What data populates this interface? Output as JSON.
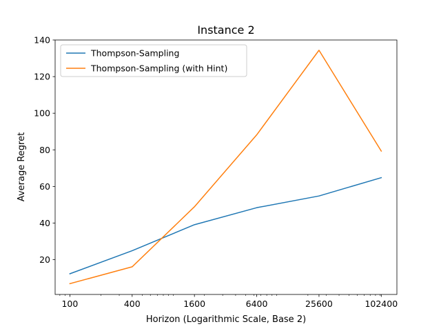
{
  "chart_data": {
    "type": "line",
    "title": "Instance 2",
    "xlabel": "Horizon (Logarithmic Scale, Base 2)",
    "ylabel": "Average Regret",
    "xscale": "log2",
    "xlim": [
      72,
      145000
    ],
    "ylim": [
      1,
      140
    ],
    "x": [
      100,
      400,
      1600,
      6400,
      25600,
      102400
    ],
    "xtick_labels": [
      "100",
      "400",
      "1600",
      "6400",
      "25600",
      "102400"
    ],
    "yticks": [
      20,
      40,
      60,
      80,
      100,
      120,
      140
    ],
    "ytick_labels": [
      "20",
      "40",
      "60",
      "80",
      "100",
      "120",
      "140"
    ],
    "grid": false,
    "legend_position": "top-left",
    "series": [
      {
        "name": "Thompson-Sampling",
        "color": "#1f77b4",
        "values": [
          12.3,
          24.9,
          39.1,
          48.4,
          54.8,
          64.8
        ]
      },
      {
        "name": "Thompson-Sampling (with Hint)",
        "color": "#ff7f0e",
        "values": [
          6.9,
          16.1,
          48.9,
          88.2,
          134.4,
          79.3
        ]
      }
    ]
  }
}
